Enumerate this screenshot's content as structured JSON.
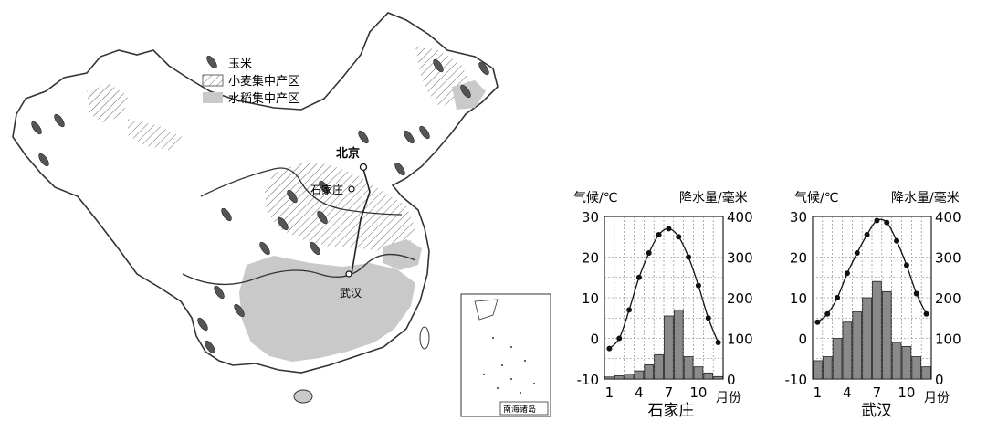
{
  "map": {
    "legend": {
      "corn": "玉米",
      "wheat": "小麦集中产区",
      "rice": "水稻集中产区"
    },
    "cities": {
      "beijing": "北京",
      "shijiazhuang": "石家庄",
      "wuhan": "武汉"
    },
    "inset_label": "南海诸岛"
  },
  "chart_data": [
    {
      "type": "bar+line",
      "title": "石家庄",
      "ylabel_left": "气候/℃",
      "ylabel_right": "降水量/毫米",
      "xlabel": "月份",
      "xticks": [
        "1",
        "4",
        "7",
        "10"
      ],
      "left_ticks": [
        "30",
        "20",
        "10",
        "0",
        "-10"
      ],
      "right_ticks": [
        "400",
        "300",
        "200",
        "100",
        "0"
      ],
      "temp_range": [
        -10,
        30
      ],
      "precip_range": [
        0,
        400
      ],
      "months": [
        1,
        2,
        3,
        4,
        5,
        6,
        7,
        8,
        9,
        10,
        11,
        12
      ],
      "temperature": [
        -2.5,
        0,
        7,
        15,
        21,
        25.5,
        27,
        25,
        20,
        13,
        5,
        -1
      ],
      "precipitation": [
        5,
        8,
        12,
        20,
        35,
        60,
        155,
        170,
        55,
        30,
        15,
        6
      ]
    },
    {
      "type": "bar+line",
      "title": "武汉",
      "ylabel_left": "气候/℃",
      "ylabel_right": "降水量/毫米",
      "xlabel": "月份",
      "xticks": [
        "1",
        "4",
        "7",
        "10"
      ],
      "left_ticks": [
        "30",
        "20",
        "10",
        "0",
        "-10"
      ],
      "right_ticks": [
        "400",
        "300",
        "200",
        "100",
        "0"
      ],
      "temp_range": [
        -10,
        30
      ],
      "precip_range": [
        0,
        400
      ],
      "months": [
        1,
        2,
        3,
        4,
        5,
        6,
        7,
        8,
        9,
        10,
        11,
        12
      ],
      "temperature": [
        4,
        6,
        10,
        16,
        21,
        25.5,
        29,
        28.5,
        24,
        18,
        11,
        6
      ],
      "precipitation": [
        45,
        55,
        100,
        140,
        165,
        200,
        240,
        215,
        90,
        80,
        55,
        30
      ]
    }
  ]
}
